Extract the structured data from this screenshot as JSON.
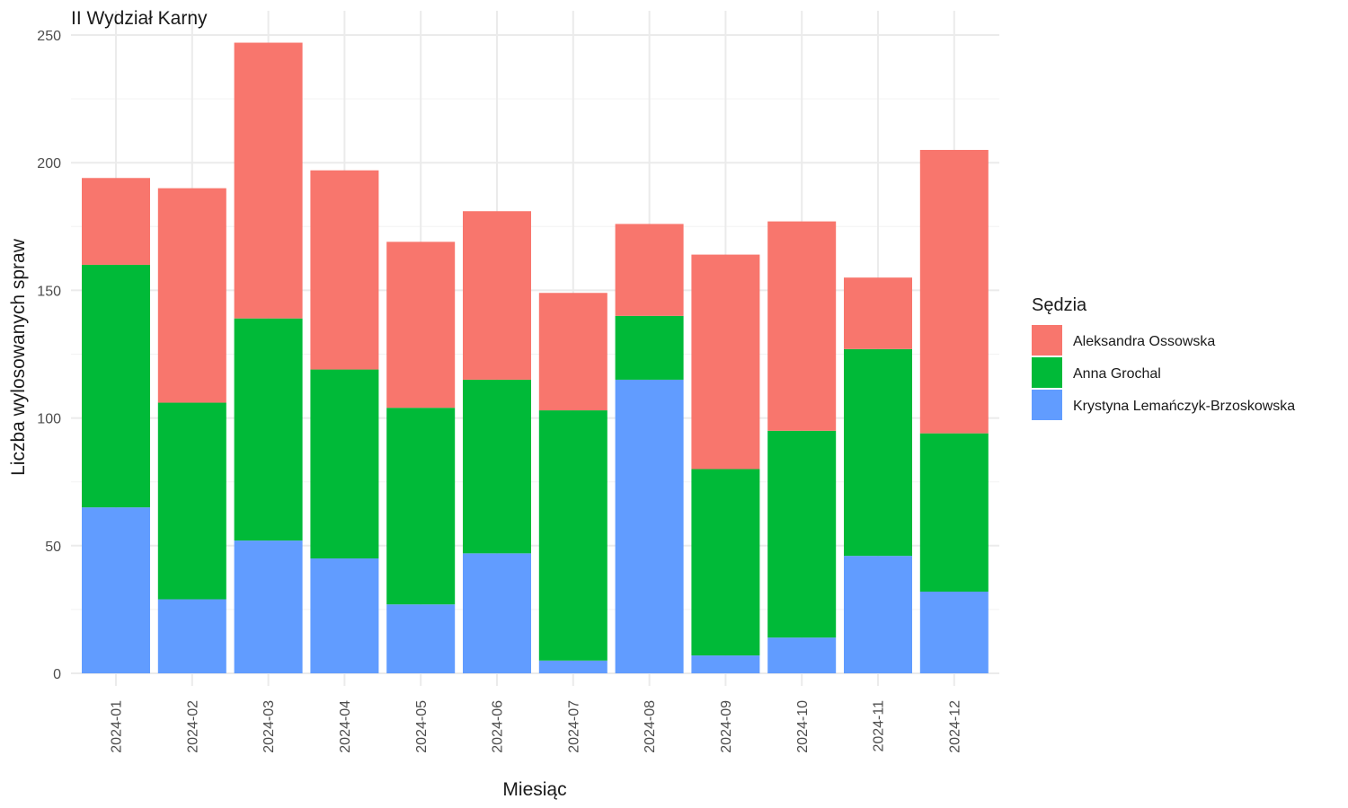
{
  "chart_data": {
    "type": "bar",
    "stacked": true,
    "title": "II Wydział Karny",
    "xlabel": "Miesiąc",
    "ylabel": "Liczba wylosowanych spraw",
    "ylim": [
      0,
      250
    ],
    "yticks": [
      0,
      50,
      100,
      150,
      200,
      250
    ],
    "grid": true,
    "legend": {
      "title": "Sędzia",
      "position": "right"
    },
    "categories": [
      "2024-01",
      "2024-02",
      "2024-03",
      "2024-04",
      "2024-05",
      "2024-06",
      "2024-07",
      "2024-08",
      "2024-09",
      "2024-10",
      "2024-11",
      "2024-12"
    ],
    "series": [
      {
        "name": "Aleksandra Ossowska",
        "color": "#F8766D",
        "values": [
          34,
          84,
          108,
          78,
          65,
          66,
          46,
          36,
          84,
          82,
          28,
          111
        ]
      },
      {
        "name": "Anna Grochal",
        "color": "#00BA38",
        "values": [
          95,
          77,
          87,
          74,
          77,
          68,
          98,
          25,
          73,
          81,
          81,
          62
        ]
      },
      {
        "name": "Krystyna Lemańczyk-Brzoskowska",
        "color": "#619CFF",
        "values": [
          65,
          29,
          52,
          45,
          27,
          47,
          5,
          115,
          7,
          14,
          46,
          32
        ]
      }
    ],
    "stack_order_bottom_to_top": [
      "Krystyna Lemańczyk-Brzoskowska",
      "Anna Grochal",
      "Aleksandra Ossowska"
    ]
  }
}
